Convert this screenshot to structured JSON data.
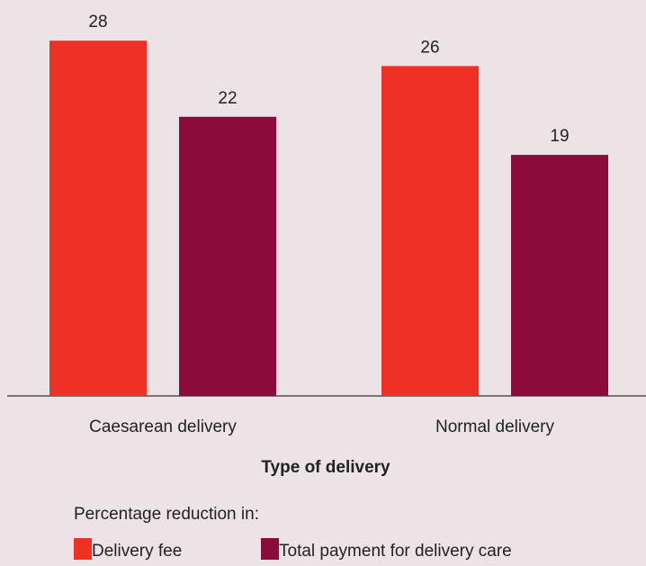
{
  "chart_data": {
    "type": "bar",
    "categories": [
      "Caesarean delivery",
      "Normal delivery"
    ],
    "x_label": "Type of delivery",
    "legend_title": "Percentage reduction in:",
    "series": [
      {
        "name": "Delivery fee",
        "color": "#ee3124",
        "values": [
          28,
          26
        ]
      },
      {
        "name": "Total payment for delivery care",
        "color": "#8b0c3a",
        "values": [
          22,
          19
        ]
      }
    ]
  }
}
